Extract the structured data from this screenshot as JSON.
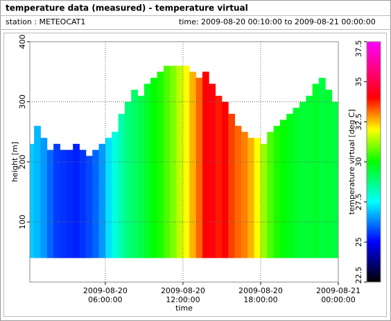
{
  "header": {
    "title": "temperature data (measured) - temperature virtual",
    "station": "station : METEOCAT1",
    "time": "time: 2009-08-20 00:10:00 to 2009-08-21 00:00:00"
  },
  "chart_data": {
    "type": "heatmap",
    "xlabel": "time",
    "ylabel": "height [m]",
    "colorbar_label": "temperature virtual [deg C]",
    "x": [
      0.25,
      0.75,
      1.25,
      1.75,
      2.25,
      2.75,
      3.25,
      3.75,
      4.25,
      4.75,
      5.25,
      5.75,
      6.25,
      6.75,
      7.25,
      7.75,
      8.25,
      8.75,
      9.25,
      9.75,
      10.25,
      10.75,
      11.25,
      11.75,
      12.25,
      12.75,
      13.25,
      13.75,
      14.25,
      14.75,
      15.25,
      15.75,
      16.25,
      16.75,
      17.25,
      17.75,
      18.25,
      18.75,
      19.25,
      19.75,
      20.25,
      20.75,
      21.25,
      21.75,
      22.25,
      22.75,
      23.25,
      23.75
    ],
    "width": 0.5,
    "bottom": 40,
    "tops": [
      230,
      260,
      240,
      220,
      230,
      220,
      220,
      230,
      220,
      210,
      220,
      230,
      240,
      250,
      280,
      300,
      320,
      310,
      330,
      340,
      350,
      360,
      360,
      360,
      360,
      350,
      340,
      350,
      330,
      310,
      300,
      280,
      260,
      250,
      240,
      240,
      230,
      250,
      260,
      270,
      280,
      290,
      300,
      310,
      330,
      340,
      320,
      300
    ],
    "values": [
      27,
      26.8,
      26.5,
      26,
      25.6,
      25.5,
      25.4,
      25.3,
      25.5,
      25.7,
      26,
      26.5,
      27.2,
      27.8,
      28.3,
      28.8,
      29,
      29.3,
      29.6,
      30,
      30.2,
      30.6,
      31,
      31.5,
      32,
      32.6,
      33.2,
      34,
      34.2,
      33.8,
      34,
      33.5,
      33.2,
      33,
      32.6,
      32,
      31.2,
      30.6,
      30.2,
      30,
      29.8,
      29.6,
      29.5,
      29.5,
      29.6,
      29.4,
      29.5,
      29.4
    ],
    "xlim": [
      0.17,
      24
    ],
    "xticks": [
      {
        "value": 6,
        "label": "2009-08-20\n06:00:00"
      },
      {
        "value": 12,
        "label": "2009-08-20\n12:00:00"
      },
      {
        "value": 18,
        "label": "2009-08-20\n18:00:00"
      },
      {
        "value": 24,
        "label": "2009-08-21\n00:00:00"
      }
    ],
    "ylim": [
      0,
      400
    ],
    "yticks": [
      100,
      200,
      300,
      400
    ],
    "grid": true,
    "clim": [
      22.5,
      37.5
    ],
    "cticks": [
      22.5,
      25,
      27.5,
      30,
      32.5,
      35,
      37.5
    ],
    "colorscale": [
      [
        22.5,
        "#000000"
      ],
      [
        25,
        "#0000ff"
      ],
      [
        27.5,
        "#00ffff"
      ],
      [
        30,
        "#00ff00"
      ],
      [
        32,
        "#ffff00"
      ],
      [
        34,
        "#ff0000"
      ],
      [
        37.5,
        "#ff00ff"
      ]
    ]
  }
}
